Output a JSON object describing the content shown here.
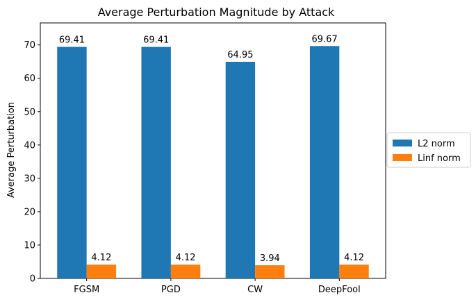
{
  "chart_data": {
    "type": "bar",
    "title": "Average Perturbation Magnitude by Attack",
    "xlabel": "",
    "ylabel": "Average Perturbation",
    "categories": [
      "FGSM",
      "PGD",
      "CW",
      "DeepFool"
    ],
    "series": [
      {
        "name": "L2 norm",
        "color": "#1f77b4",
        "values": [
          69.41,
          69.41,
          64.95,
          69.67
        ],
        "labels": [
          "69.41",
          "69.41",
          "64.95",
          "69.67"
        ]
      },
      {
        "name": "Linf norm",
        "color": "#ff7f0e",
        "values": [
          4.12,
          4.12,
          3.94,
          4.12
        ],
        "labels": [
          "4.12",
          "4.12",
          "3.94",
          "4.12"
        ]
      }
    ],
    "ylim": [
      0,
      76.6
    ],
    "yticks": [
      0,
      10,
      20,
      30,
      40,
      50,
      60,
      70
    ],
    "grid": false,
    "legend_position": "outside-right"
  }
}
